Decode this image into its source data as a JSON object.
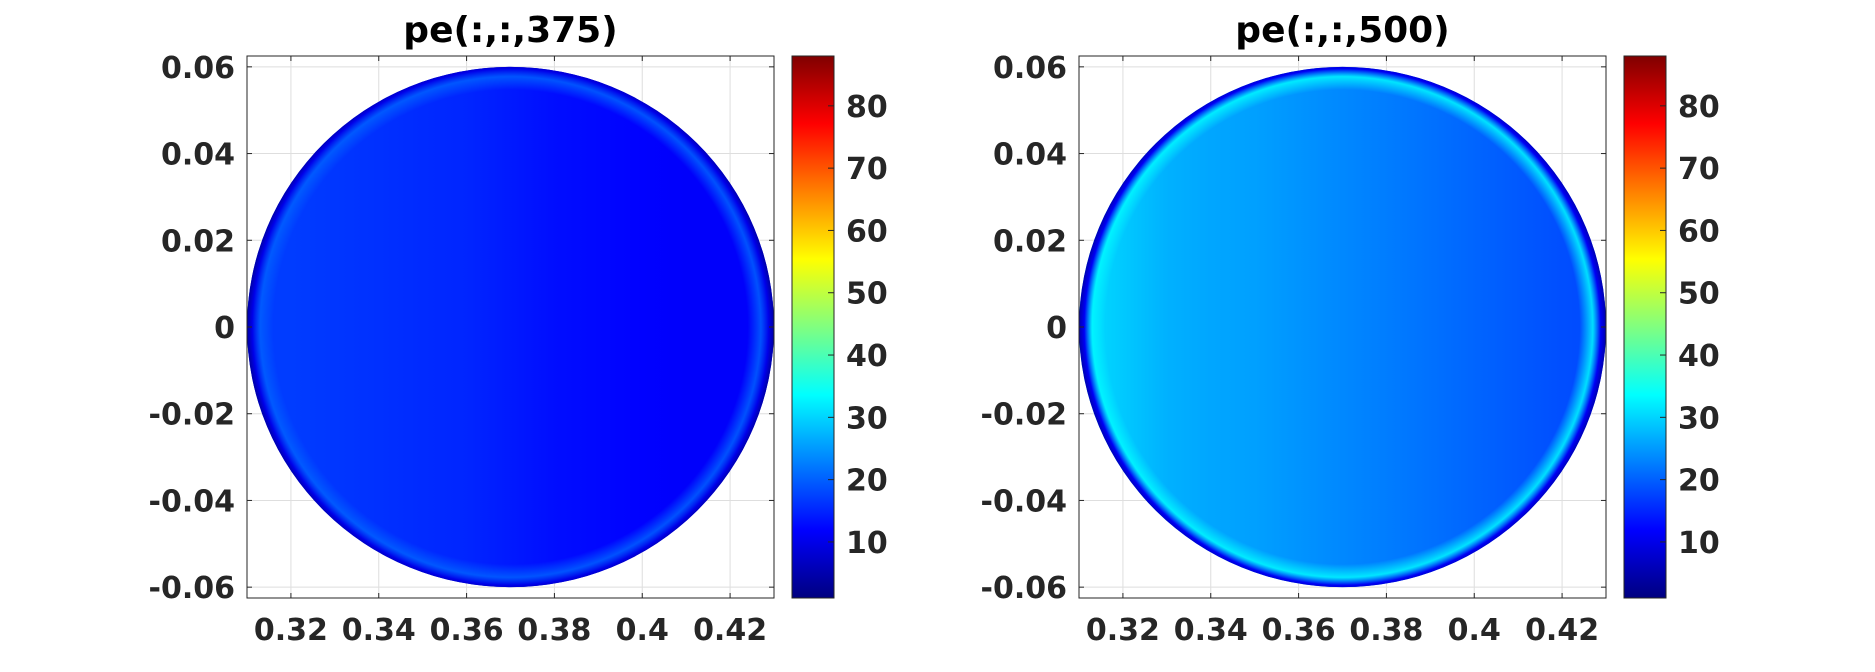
{
  "chart_data": [
    {
      "type": "heatmap",
      "title": "pe(:,:,375)",
      "xlim": [
        0.31,
        0.43
      ],
      "ylim": [
        -0.0625,
        0.0625
      ],
      "xticks": [
        0.32,
        0.34,
        0.36,
        0.38,
        0.4,
        0.42
      ],
      "xtick_labels": [
        "0.32",
        "0.34",
        "0.36",
        "0.38",
        "0.4",
        "0.42"
      ],
      "yticks": [
        0.06,
        0.04,
        0.02,
        0,
        -0.02,
        -0.04,
        -0.06
      ],
      "ytick_labels": [
        "0.06",
        "0.04",
        "0.02",
        "0",
        "-0.02",
        "-0.04",
        "-0.06"
      ],
      "grid": true,
      "domain": {
        "shape": "circle",
        "center": [
          0.37,
          0
        ],
        "radius": 0.06
      },
      "field": {
        "x": [
          0.31,
          0.32,
          0.33,
          0.34,
          0.35,
          0.36,
          0.37,
          0.38,
          0.39,
          0.4,
          0.41,
          0.42,
          0.43
        ],
        "values": [
          17,
          17,
          16.5,
          16,
          15.5,
          15,
          14,
          13,
          12.5,
          12,
          11.5,
          11.5,
          11.5
        ],
        "edge_values": {
          "rim_inner": 20,
          "rim_outer": 4
        }
      },
      "colorbar": {
        "colormap": "jet",
        "clim": [
          1,
          88
        ],
        "ticks": [
          10,
          20,
          30,
          40,
          50,
          60,
          70,
          80
        ],
        "tick_labels": [
          "10",
          "20",
          "30",
          "40",
          "50",
          "60",
          "70",
          "80"
        ]
      }
    },
    {
      "type": "heatmap",
      "title": "pe(:,:,500)",
      "xlim": [
        0.31,
        0.43
      ],
      "ylim": [
        -0.0625,
        0.0625
      ],
      "xticks": [
        0.32,
        0.34,
        0.36,
        0.38,
        0.4,
        0.42
      ],
      "xtick_labels": [
        "0.32",
        "0.34",
        "0.36",
        "0.38",
        "0.4",
        "0.42"
      ],
      "yticks": [
        0.06,
        0.04,
        0.02,
        0,
        -0.02,
        -0.04,
        -0.06
      ],
      "ytick_labels": [
        "0.06",
        "0.04",
        "0.02",
        "0",
        "-0.02",
        "-0.04",
        "-0.06"
      ],
      "grid": true,
      "domain": {
        "shape": "circle",
        "center": [
          0.37,
          0
        ],
        "radius": 0.06
      },
      "field": {
        "x": [
          0.31,
          0.32,
          0.33,
          0.34,
          0.35,
          0.36,
          0.37,
          0.38,
          0.39,
          0.4,
          0.41,
          0.42,
          0.43
        ],
        "values": [
          31,
          29,
          27,
          26,
          25.5,
          24.5,
          23.5,
          22.5,
          21.5,
          20.5,
          19.5,
          18.5,
          18
        ],
        "edge_values": {
          "rim_inner": 33,
          "rim_outer": 5
        }
      },
      "colorbar": {
        "colormap": "jet",
        "clim": [
          1,
          88
        ],
        "ticks": [
          10,
          20,
          30,
          40,
          50,
          60,
          70,
          80
        ],
        "tick_labels": [
          "10",
          "20",
          "30",
          "40",
          "50",
          "60",
          "70",
          "80"
        ]
      }
    }
  ]
}
